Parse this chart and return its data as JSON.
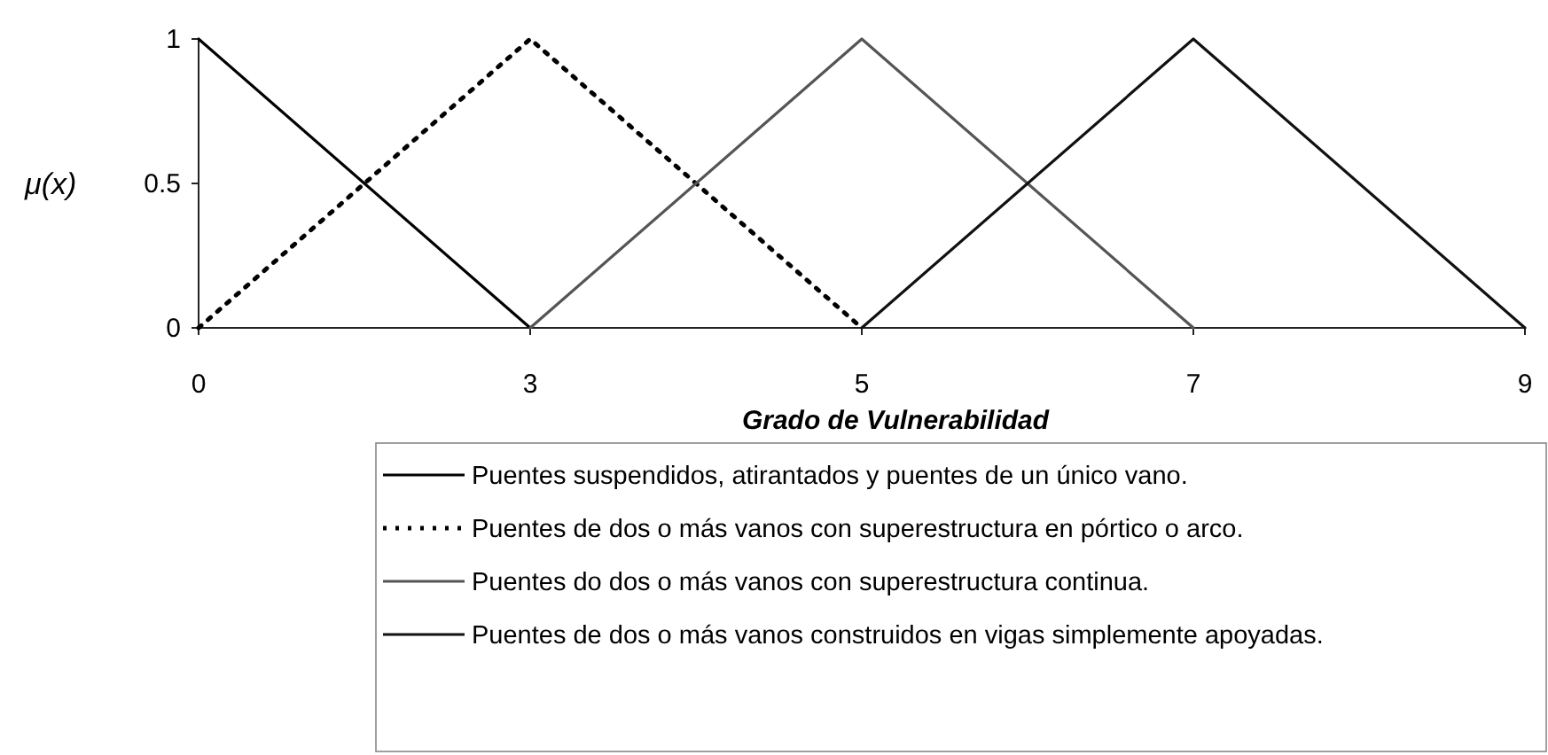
{
  "chart_data": {
    "type": "line",
    "xlabel": "Grado de Vulnerabilidad",
    "ylabel": "μ(x)",
    "categories": [
      "0",
      "3",
      "5",
      "7",
      "9"
    ],
    "ylim": [
      0,
      1
    ],
    "yticks": [
      0,
      0.5,
      1
    ],
    "legend": "bottom",
    "marker": "none",
    "series": [
      {
        "name": "Puentes suspendidos, atirantados y puentes de un único vano.",
        "color": "#000000",
        "line_style": "solid",
        "values": [
          1,
          0,
          null,
          null,
          null
        ]
      },
      {
        "name": "Puentes de dos o más vanos con superestructura en pórtico o arco.",
        "color": "#000000",
        "line_style": "dotted",
        "values": [
          0,
          1,
          0,
          null,
          null
        ]
      },
      {
        "name": "Puentes do dos o más vanos con superestructura continua.",
        "color": "#555555",
        "line_style": "solid",
        "values": [
          null,
          0,
          1,
          0,
          null
        ]
      },
      {
        "name": "Puentes de dos o más vanos construidos en vigas simplemente apoyadas.",
        "color": "#111111",
        "line_style": "solid",
        "values": [
          null,
          null,
          0,
          1,
          0
        ]
      }
    ]
  }
}
